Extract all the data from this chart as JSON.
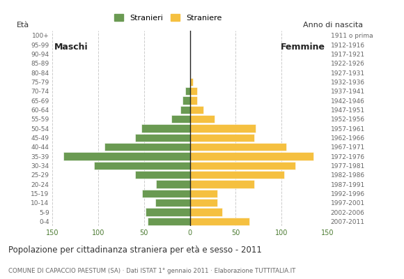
{
  "age_groups": [
    "0-4",
    "5-9",
    "10-14",
    "15-19",
    "20-24",
    "25-29",
    "30-34",
    "35-39",
    "40-44",
    "45-49",
    "50-54",
    "55-59",
    "60-64",
    "65-69",
    "70-74",
    "75-79",
    "80-84",
    "85-89",
    "90-94",
    "95-99",
    "100+"
  ],
  "birth_years": [
    "2007-2011",
    "2002-2006",
    "1997-2001",
    "1992-1996",
    "1987-1991",
    "1982-1986",
    "1977-1981",
    "1972-1976",
    "1967-1971",
    "1962-1966",
    "1957-1961",
    "1952-1956",
    "1947-1951",
    "1942-1946",
    "1937-1941",
    "1932-1936",
    "1927-1931",
    "1922-1926",
    "1917-1921",
    "1912-1916",
    "1911 o prima"
  ],
  "males": [
    46,
    48,
    38,
    52,
    37,
    60,
    105,
    138,
    93,
    60,
    53,
    20,
    10,
    8,
    5,
    0,
    0,
    0,
    0,
    0,
    0
  ],
  "females": [
    65,
    35,
    30,
    30,
    70,
    103,
    115,
    135,
    105,
    70,
    72,
    27,
    15,
    8,
    8,
    3,
    0,
    0,
    0,
    0,
    0
  ],
  "male_color": "#6a9a52",
  "female_color": "#f5c040",
  "male_label": "Stranieri",
  "female_label": "Straniere",
  "x_min": -150,
  "x_max": 150,
  "x_ticks": [
    -150,
    -100,
    -50,
    0,
    50,
    100,
    150
  ],
  "x_tick_labels": [
    "150",
    "100",
    "50",
    "0",
    "50",
    "100",
    "150"
  ],
  "title": "Popolazione per cittadinanza straniera per età e sesso - 2011",
  "subtitle": "COMUNE DI CAPACCIO PAESTUM (SA) · Dati ISTAT 1° gennaio 2011 · Elaborazione TUTTITALIA.IT",
  "y_label": "Età",
  "right_label": "Anno di nascita",
  "males_text": "Maschi",
  "females_text": "Femmine",
  "grid_color": "#cccccc",
  "bar_height": 0.85
}
